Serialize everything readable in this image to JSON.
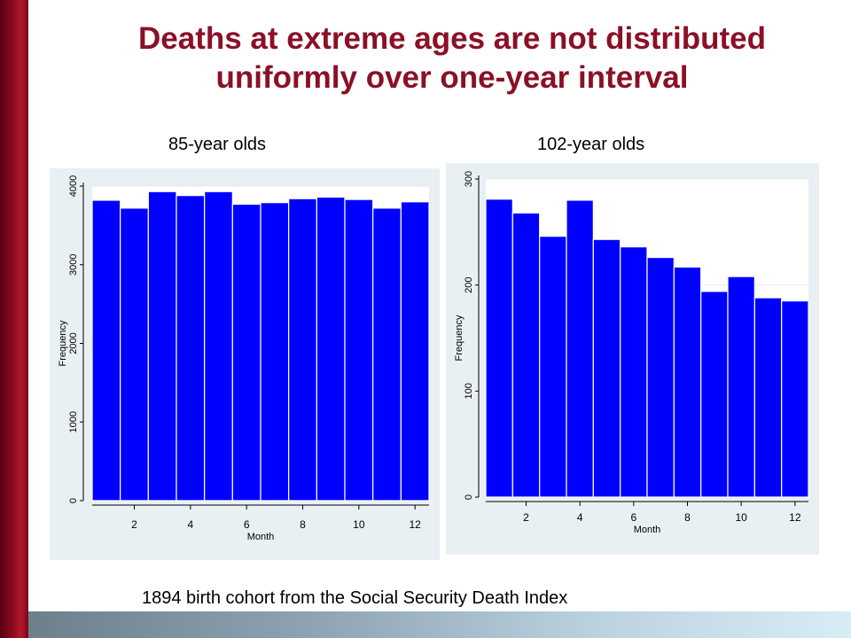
{
  "slide": {
    "title_line1": "Deaths at extreme ages are not distributed",
    "title_line2": "uniformly over one-year interval",
    "footer": "1894 birth cohort from the Social Security Death Index",
    "colors": {
      "title": "#8b1026",
      "bars": "#0000ff",
      "panel_bg": "#e9f0f3"
    }
  },
  "chart_data": [
    {
      "type": "bar",
      "panel_label": "85-year olds",
      "xlabel": "Month",
      "ylabel": "Frequency",
      "categories": [
        1,
        2,
        3,
        4,
        5,
        6,
        7,
        8,
        9,
        10,
        11,
        12
      ],
      "values": [
        3820,
        3720,
        3930,
        3880,
        3930,
        3770,
        3790,
        3840,
        3860,
        3830,
        3720,
        3800
      ],
      "x_ticks": [
        2,
        4,
        6,
        8,
        10,
        12
      ],
      "y_ticks": [
        0,
        1000,
        2000,
        3000,
        4000
      ],
      "xlim": [
        0.5,
        12.5
      ],
      "ylim": [
        0,
        4000
      ],
      "grid": true
    },
    {
      "type": "bar",
      "panel_label": "102-year olds",
      "xlabel": "Month",
      "ylabel": "Frequency",
      "categories": [
        1,
        2,
        3,
        4,
        5,
        6,
        7,
        8,
        9,
        10,
        11,
        12
      ],
      "values": [
        281,
        268,
        246,
        280,
        243,
        236,
        226,
        217,
        194,
        208,
        188,
        185
      ],
      "x_ticks": [
        2,
        4,
        6,
        8,
        10,
        12
      ],
      "y_ticks": [
        0,
        100,
        200,
        300
      ],
      "xlim": [
        0.5,
        12.5
      ],
      "ylim": [
        0,
        300
      ],
      "grid": true
    }
  ]
}
